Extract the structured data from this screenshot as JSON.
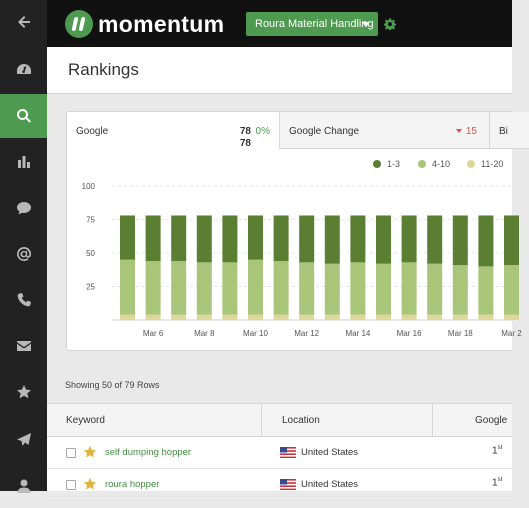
{
  "app": {
    "logo_text": "momentum",
    "client_select": "Roura Material Handling"
  },
  "sidebar": {
    "items": [
      {
        "name": "back-arrow-icon"
      },
      {
        "name": "dashboard-icon"
      },
      {
        "name": "search-icon",
        "active": true
      },
      {
        "name": "bar-chart-icon"
      },
      {
        "name": "chat-bubble-icon"
      },
      {
        "name": "at-sign-icon"
      },
      {
        "name": "phone-icon"
      },
      {
        "name": "envelope-icon"
      },
      {
        "name": "star-icon"
      },
      {
        "name": "paper-plane-icon"
      },
      {
        "name": "user-icon"
      }
    ]
  },
  "page": {
    "title": "Rankings"
  },
  "tabs": [
    {
      "name": "Google",
      "value": "78",
      "pct": "0%",
      "value2": "78"
    },
    {
      "name": "Google Change",
      "change": "15"
    },
    {
      "name": "Bi"
    }
  ],
  "chart_data": {
    "type": "bar",
    "stacked": true,
    "ylim": [
      0,
      100
    ],
    "yticks": [
      "100",
      "75",
      "50",
      "25"
    ],
    "xtick_labels": [
      "Mar 6",
      "Mar 8",
      "Mar 10",
      "Mar 12",
      "Mar 14",
      "Mar 16",
      "Mar 18",
      "Mar 2"
    ],
    "legend": {
      "placement": "top-right",
      "entries": [
        "1-3",
        "4-10",
        "11-20"
      ]
    },
    "series": [
      {
        "name": "11-20",
        "color": "#dfd69a",
        "values": [
          4,
          4,
          4,
          4,
          4,
          4,
          4,
          4,
          4,
          4,
          4,
          4,
          4,
          4,
          4,
          4,
          4
        ]
      },
      {
        "name": "4-10",
        "color": "#a8c57a",
        "values": [
          41,
          40,
          40,
          39,
          39,
          41,
          40,
          39,
          38,
          39,
          38,
          39,
          38,
          37,
          36,
          37,
          36
        ]
      },
      {
        "name": "1-3",
        "color": "#5b7f32",
        "values": [
          33,
          34,
          34,
          35,
          35,
          33,
          34,
          35,
          36,
          35,
          36,
          35,
          36,
          37,
          38,
          37,
          38
        ]
      }
    ]
  },
  "table": {
    "rows_count": "Showing 50 of 79 Rows",
    "headers": {
      "keyword": "Keyword",
      "location": "Location",
      "google": "Google"
    },
    "rows": [
      {
        "keyword": "self dumping hopper",
        "location": "United States",
        "rank": "1",
        "rank_suffix": "st"
      },
      {
        "keyword": "roura hopper",
        "location": "United States",
        "rank": "1",
        "rank_suffix": "st"
      }
    ]
  }
}
